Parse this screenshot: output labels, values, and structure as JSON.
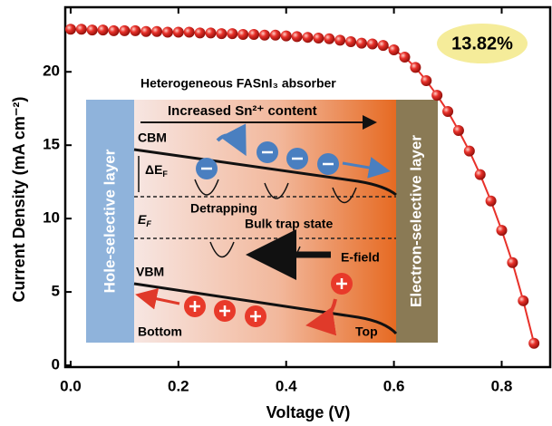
{
  "chart_data": {
    "type": "line",
    "xlabel": "Voltage (V)",
    "ylabel": "Current Density (mA cm⁻²)",
    "annotation": "13.82%",
    "color": "#e8312a",
    "x": [
      0,
      0.02,
      0.04,
      0.06,
      0.08,
      0.1,
      0.12,
      0.14,
      0.16,
      0.18,
      0.2,
      0.22,
      0.24,
      0.26,
      0.28,
      0.3,
      0.32,
      0.34,
      0.36,
      0.38,
      0.4,
      0.42,
      0.44,
      0.46,
      0.48,
      0.5,
      0.52,
      0.54,
      0.56,
      0.58,
      0.6,
      0.62,
      0.64,
      0.66,
      0.68,
      0.7,
      0.72,
      0.74,
      0.76,
      0.78,
      0.8,
      0.82,
      0.84,
      0.86
    ],
    "values": [
      22.9,
      22.9,
      22.85,
      22.85,
      22.8,
      22.8,
      22.8,
      22.75,
      22.75,
      22.7,
      22.7,
      22.7,
      22.65,
      22.65,
      22.6,
      22.6,
      22.55,
      22.55,
      22.5,
      22.5,
      22.45,
      22.4,
      22.35,
      22.3,
      22.25,
      22.15,
      22.05,
      21.95,
      21.9,
      21.8,
      21.5,
      21.0,
      20.3,
      19.4,
      18.4,
      17.3,
      16.0,
      14.6,
      13.0,
      11.2,
      9.2,
      7.0,
      4.4,
      1.5
    ],
    "xlim": [
      -0.01,
      0.89
    ],
    "ylim": [
      -0.12,
      24.4
    ],
    "xticks": [
      {
        "value": 0,
        "label": "0.0"
      },
      0.2,
      0.4,
      0.6,
      0.8
    ],
    "yticks": [
      0,
      5,
      10,
      15,
      20
    ],
    "inset": {
      "title": "Heterogeneous FASnI₃ absorber",
      "trend": "Increased Sn²⁺ content",
      "cbm": "CBM",
      "delta": "ΔE",
      "delta_sub": "F",
      "detrapping": "Detrapping",
      "bulk_trap": "Bulk trap state",
      "ef": "E",
      "ef_sub": "F",
      "efield": "E-field",
      "vbm": "VBM",
      "bottom": "Bottom",
      "top": "Top",
      "hole_layer": "Hole-selective layer",
      "electron_layer": "Electron-selective layer"
    }
  }
}
